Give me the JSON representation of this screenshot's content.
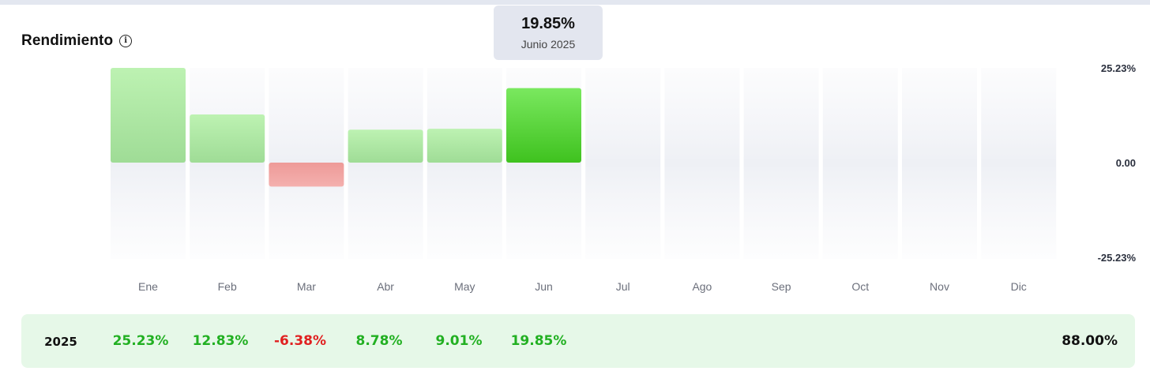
{
  "header": {
    "title": "Rendimiento",
    "info_icon": "info-icon"
  },
  "tooltip": {
    "value": "19.85%",
    "label": "Junio 2025"
  },
  "colors": {
    "positive": "#22b022",
    "negative": "#e02020",
    "positive_bar": "#a8e6a0",
    "negative_bar": "#f0a0a0",
    "highlight_bar": "#55d33f",
    "column_bg": "#f2f3f7",
    "summary_bg": "#e6f8e8"
  },
  "chart_data": {
    "type": "bar",
    "categories": [
      "Ene",
      "Feb",
      "Mar",
      "Abr",
      "May",
      "Jun",
      "Jul",
      "Ago",
      "Sep",
      "Oct",
      "Nov",
      "Dic"
    ],
    "values": [
      25.23,
      12.83,
      -6.38,
      8.78,
      9.01,
      19.85,
      null,
      null,
      null,
      null,
      null,
      null
    ],
    "highlighted_category": "Jun",
    "ylim": [
      -25.23,
      25.23
    ],
    "y_tick_labels": [
      "25.23%",
      "0.00",
      "-25.23%"
    ],
    "grid": false,
    "legend": "none"
  },
  "summary": {
    "year": "2025",
    "values": [
      "25.23%",
      "12.83%",
      "-6.38%",
      "8.78%",
      "9.01%",
      "19.85%"
    ],
    "total": "88.00%"
  }
}
